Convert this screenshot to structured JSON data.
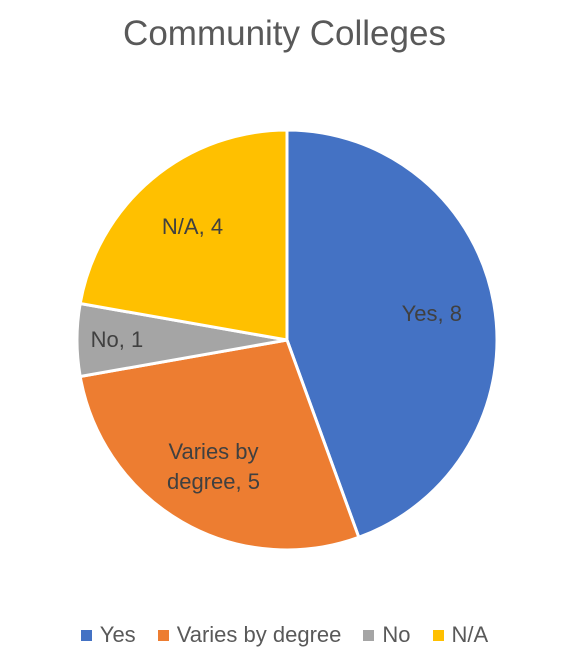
{
  "chart_data": {
    "type": "pie",
    "title": "Community Colleges",
    "categories": [
      "Yes",
      "Varies by degree",
      "No",
      "N/A"
    ],
    "values": [
      8,
      5,
      1,
      4
    ],
    "value_labels": [
      "Yes, 8",
      "Varies by degree, 5",
      "No, 1",
      "N/A, 4"
    ],
    "colors": [
      "#4472c4",
      "#ed7d31",
      "#a5a5a5",
      "#ffc000"
    ],
    "legend": "bottom"
  }
}
